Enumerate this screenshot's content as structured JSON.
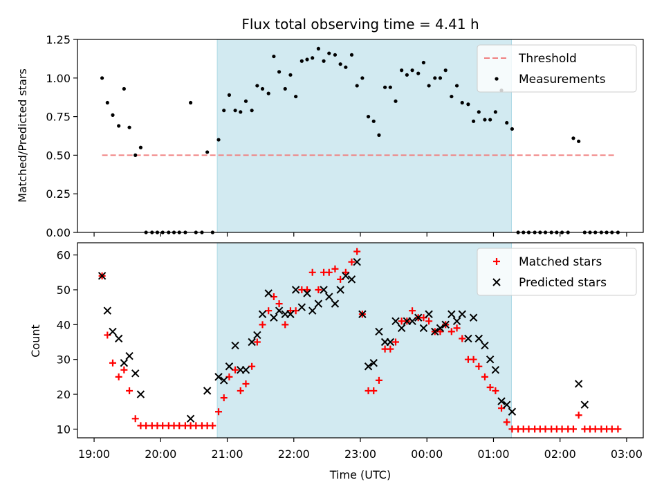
{
  "chart_data": [
    {
      "type": "scatter",
      "title": "Flux total observing time = 4.41 h",
      "xlabel": "",
      "ylabel": "Matched/Predicted stars",
      "ylim": [
        0,
        1.25
      ],
      "yticks": [
        "0.00",
        "0.25",
        "0.50",
        "0.75",
        "1.00",
        "1.25"
      ],
      "ytick_values": [
        0,
        0.25,
        0.5,
        0.75,
        1.0,
        1.25
      ],
      "xlim_hours": [
        18.75,
        27.25
      ],
      "shaded_interval_hours": [
        20.85,
        25.27
      ],
      "shade_color": "#add8e6",
      "legend_position": "upper-right",
      "series": [
        {
          "name": "Threshold",
          "style": "dashed-line",
          "color": "#f08080",
          "x": [
            19.12,
            26.85
          ],
          "y": [
            0.5,
            0.5
          ]
        },
        {
          "name": "Measurements",
          "style": "dot",
          "color": "#000000",
          "x": [
            19.12,
            19.2,
            19.28,
            19.37,
            19.45,
            19.53,
            19.62,
            19.7,
            19.78,
            19.87,
            19.95,
            20.03,
            20.12,
            20.2,
            20.28,
            20.37,
            20.45,
            20.53,
            20.62,
            20.7,
            20.78,
            20.87,
            20.95,
            21.03,
            21.12,
            21.2,
            21.28,
            21.37,
            21.45,
            21.53,
            21.62,
            21.7,
            21.78,
            21.87,
            21.95,
            22.03,
            22.12,
            22.2,
            22.28,
            22.37,
            22.45,
            22.53,
            22.62,
            22.7,
            22.78,
            22.87,
            22.95,
            23.03,
            23.12,
            23.2,
            23.28,
            23.37,
            23.45,
            23.53,
            23.62,
            23.7,
            23.78,
            23.87,
            23.95,
            24.03,
            24.12,
            24.2,
            24.28,
            24.37,
            24.45,
            24.53,
            24.62,
            24.7,
            24.78,
            24.87,
            24.95,
            25.03,
            25.12,
            25.2,
            25.28,
            25.37,
            25.45,
            25.53,
            25.62,
            25.7,
            25.78,
            25.87,
            25.95,
            26.03,
            26.12,
            26.2,
            26.28,
            26.37,
            26.45,
            26.53,
            26.62,
            26.7,
            26.78,
            26.87
          ],
          "y": [
            1.0,
            0.84,
            0.76,
            0.69,
            0.93,
            0.68,
            0.5,
            0.55,
            0,
            0,
            0,
            0,
            0,
            0,
            0,
            0,
            0.84,
            0,
            0,
            0.52,
            0,
            0.6,
            0.79,
            0.89,
            0.79,
            0.78,
            0.85,
            0.79,
            0.95,
            0.93,
            0.9,
            1.14,
            1.04,
            0.93,
            1.02,
            0.88,
            1.11,
            1.12,
            1.13,
            1.19,
            1.11,
            1.16,
            1.15,
            1.09,
            1.07,
            1.15,
            0.95,
            1.0,
            0.75,
            0.72,
            0.63,
            0.94,
            0.94,
            0.85,
            1.05,
            1.02,
            1.05,
            1.03,
            1.1,
            0.95,
            1.0,
            1.0,
            1.05,
            0.88,
            0.95,
            0.84,
            0.83,
            0.72,
            0.78,
            0.73,
            0.73,
            0.78,
            0.92,
            0.71,
            0.67,
            0,
            0,
            0,
            0,
            0,
            0,
            0,
            0,
            0,
            0,
            0.61,
            0.59,
            0,
            0,
            0,
            0,
            0,
            0,
            0
          ]
        }
      ]
    },
    {
      "type": "scatter",
      "title": "",
      "xlabel": "Time (UTC)",
      "ylabel": "Count",
      "ylim": [
        7.5,
        63.5
      ],
      "yticks": [
        "10",
        "20",
        "30",
        "40",
        "50",
        "60"
      ],
      "ytick_values": [
        10,
        20,
        30,
        40,
        50,
        60
      ],
      "xlim_hours": [
        18.75,
        27.25
      ],
      "xtick_values": [
        19,
        20,
        21,
        22,
        23,
        24,
        25,
        26,
        27
      ],
      "xticks": [
        "19:00",
        "20:00",
        "21:00",
        "22:00",
        "23:00",
        "00:00",
        "01:00",
        "02:00",
        "03:00"
      ],
      "shaded_interval_hours": [
        20.85,
        25.27
      ],
      "shade_color": "#add8e6",
      "legend_position": "upper-right",
      "series": [
        {
          "name": "Matched stars",
          "style": "plus",
          "color": "#ff0000",
          "x": [
            19.12,
            19.2,
            19.28,
            19.37,
            19.45,
            19.53,
            19.62,
            19.7,
            19.78,
            19.87,
            19.95,
            20.03,
            20.12,
            20.2,
            20.28,
            20.37,
            20.45,
            20.53,
            20.62,
            20.7,
            20.78,
            20.87,
            20.95,
            21.03,
            21.12,
            21.2,
            21.28,
            21.37,
            21.45,
            21.53,
            21.62,
            21.7,
            21.78,
            21.87,
            21.95,
            22.03,
            22.12,
            22.2,
            22.28,
            22.37,
            22.45,
            22.53,
            22.62,
            22.7,
            22.78,
            22.87,
            22.95,
            23.03,
            23.12,
            23.2,
            23.28,
            23.37,
            23.45,
            23.53,
            23.62,
            23.7,
            23.78,
            23.87,
            23.95,
            24.03,
            24.12,
            24.2,
            24.28,
            24.37,
            24.45,
            24.53,
            24.62,
            24.7,
            24.78,
            24.87,
            24.95,
            25.03,
            25.12,
            25.2,
            25.28,
            25.37,
            25.45,
            25.53,
            25.62,
            25.7,
            25.78,
            25.87,
            25.95,
            26.03,
            26.12,
            26.2,
            26.28,
            26.37,
            26.45,
            26.53,
            26.62,
            26.7,
            26.78,
            26.87
          ],
          "y": [
            54,
            37,
            29,
            25,
            27,
            21,
            13,
            11,
            11,
            11,
            11,
            11,
            11,
            11,
            11,
            11,
            11,
            11,
            11,
            11,
            11,
            15,
            19,
            25,
            27,
            21,
            23,
            28,
            35,
            40,
            44,
            48,
            46,
            40,
            44,
            44,
            50,
            50,
            55,
            50,
            55,
            55,
            56,
            53,
            55,
            58,
            61,
            43,
            21,
            21,
            24,
            33,
            33,
            35,
            41,
            41,
            44,
            42,
            42,
            41,
            38,
            38,
            40,
            38,
            39,
            36,
            30,
            30,
            28,
            25,
            22,
            21,
            16,
            12,
            10,
            10,
            10,
            10,
            10,
            10,
            10,
            10,
            10,
            10,
            10,
            10,
            14,
            10,
            10,
            10,
            10,
            10,
            10,
            10
          ]
        },
        {
          "name": "Predicted stars",
          "style": "cross",
          "color": "#000000",
          "x": [
            19.12,
            19.2,
            19.28,
            19.37,
            19.45,
            19.53,
            19.62,
            19.7,
            20.45,
            20.7,
            20.87,
            20.95,
            21.03,
            21.12,
            21.2,
            21.28,
            21.37,
            21.45,
            21.53,
            21.62,
            21.7,
            21.78,
            21.87,
            21.95,
            22.03,
            22.12,
            22.2,
            22.28,
            22.37,
            22.45,
            22.53,
            22.62,
            22.7,
            22.78,
            22.87,
            22.95,
            23.03,
            23.12,
            23.2,
            23.28,
            23.37,
            23.45,
            23.53,
            23.62,
            23.7,
            23.78,
            23.87,
            23.95,
            24.03,
            24.12,
            24.2,
            24.28,
            24.37,
            24.45,
            24.53,
            24.62,
            24.7,
            24.78,
            24.87,
            24.95,
            25.03,
            25.12,
            25.2,
            25.28,
            26.28,
            26.37
          ],
          "y": [
            54,
            44,
            38,
            36,
            29,
            31,
            26,
            20,
            13,
            21,
            25,
            24,
            28,
            34,
            27,
            27,
            35,
            37,
            43,
            49,
            42,
            44,
            43,
            43,
            50,
            45,
            49,
            44,
            46,
            50,
            48,
            46,
            50,
            54,
            53,
            58,
            43,
            28,
            29,
            38,
            35,
            35,
            41,
            39,
            41,
            41,
            42,
            39,
            43,
            38,
            39,
            40,
            43,
            41,
            43,
            36,
            42,
            36,
            34,
            30,
            27,
            18,
            17,
            15,
            23,
            17
          ]
        }
      ]
    }
  ]
}
